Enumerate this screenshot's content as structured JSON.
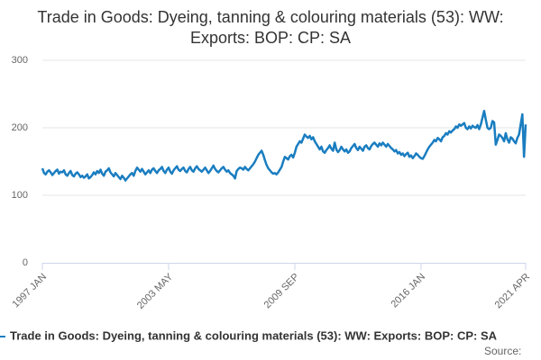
{
  "chart_data": {
    "type": "line",
    "title": "Trade in Goods: Dyeing, tanning & colouring materials (53): WW: Exports: BOP: CP: SA",
    "source": "Source:",
    "categories": [
      "1997 JAN",
      null,
      null,
      null,
      null,
      null,
      null,
      null,
      null,
      null,
      null,
      null,
      null,
      null,
      null,
      null,
      null,
      null,
      null,
      null,
      null,
      null,
      null,
      null,
      null,
      null,
      null,
      null,
      null,
      null,
      null,
      null,
      null,
      null,
      null,
      null,
      null,
      null,
      null,
      null,
      null,
      null,
      null,
      null,
      null,
      null,
      null,
      null,
      null,
      null,
      null,
      null,
      null,
      null,
      null,
      null,
      null,
      null,
      null,
      null,
      null,
      null,
      null,
      null,
      null,
      null,
      null,
      null,
      null,
      null,
      null,
      null,
      null,
      null,
      null,
      null,
      "2003 MAY",
      null,
      null,
      null,
      null,
      null,
      null,
      null,
      null,
      null,
      null,
      null,
      null,
      null,
      null,
      null,
      null,
      null,
      null,
      null,
      null,
      null,
      null,
      null,
      null,
      null,
      null,
      null,
      null,
      null,
      null,
      null,
      null,
      null,
      null,
      null,
      null,
      null,
      null,
      null,
      null,
      null,
      null,
      null,
      null,
      null,
      null,
      null,
      null,
      null,
      null,
      null,
      null,
      null,
      null,
      null,
      null,
      null,
      null,
      null,
      null,
      null,
      null,
      null,
      null,
      null,
      null,
      null,
      null,
      null,
      null,
      null,
      null,
      null,
      null,
      null,
      "2009 SEP",
      null,
      null,
      null,
      null,
      null,
      null,
      null,
      null,
      null,
      null,
      null,
      null,
      null,
      null,
      null,
      null,
      null,
      null,
      null,
      null,
      null,
      null,
      null,
      null,
      null,
      null,
      null,
      null,
      null,
      null,
      null,
      null,
      null,
      null,
      null,
      null,
      null,
      null,
      null,
      null,
      null,
      null,
      null,
      null,
      null,
      null,
      null,
      null,
      null,
      null,
      null,
      null,
      null,
      null,
      null,
      null,
      null,
      null,
      null,
      null,
      null,
      null,
      null,
      null,
      null,
      null,
      null,
      null,
      null,
      null,
      null,
      null,
      null,
      null,
      null,
      "2016 JAN",
      null,
      null,
      null,
      null,
      null,
      null,
      null,
      null,
      null,
      null,
      null,
      null,
      null,
      null,
      null,
      null,
      null,
      null,
      null,
      null,
      null,
      null,
      null,
      null,
      null,
      null,
      null,
      null,
      null,
      null,
      null,
      null,
      null,
      null,
      null,
      null,
      null,
      null,
      null,
      null,
      null,
      null,
      null,
      null,
      null,
      null,
      null,
      null,
      null,
      null,
      null,
      null,
      null,
      null,
      null,
      null,
      null,
      null,
      null,
      null,
      null,
      null,
      "2021 APR"
    ],
    "series": [
      {
        "name": "Trade in Goods: Dyeing, tanning & colouring materials (53): WW: Exports: BOP: CP: SA",
        "color": "#1a7dc0",
        "values": [
          140,
          133,
          131,
          135,
          137,
          134,
          130,
          133,
          136,
          138,
          132,
          135,
          134,
          137,
          131,
          129,
          133,
          136,
          130,
          128,
          132,
          134,
          131,
          127,
          129,
          126,
          128,
          131,
          125,
          127,
          130,
          134,
          131,
          136,
          133,
          138,
          132,
          129,
          135,
          137,
          140,
          134,
          131,
          128,
          133,
          130,
          127,
          124,
          129,
          126,
          122,
          125,
          128,
          131,
          133,
          129,
          136,
          141,
          138,
          135,
          139,
          135,
          131,
          134,
          137,
          133,
          138,
          140,
          136,
          133,
          137,
          139,
          142,
          136,
          133,
          138,
          141,
          135,
          132,
          137,
          140,
          143,
          138,
          136,
          139,
          141,
          136,
          134,
          139,
          142,
          137,
          135,
          140,
          143,
          139,
          137,
          135,
          138,
          141,
          137,
          133,
          136,
          140,
          144,
          139,
          136,
          134,
          137,
          140,
          142,
          138,
          135,
          137,
          133,
          131,
          129,
          125,
          136,
          139,
          141,
          140,
          138,
          142,
          139,
          137,
          140,
          143,
          146,
          150,
          155,
          160,
          163,
          166,
          160,
          152,
          145,
          140,
          137,
          134,
          132,
          133,
          131,
          134,
          138,
          142,
          150,
          157,
          155,
          153,
          158,
          160,
          156,
          163,
          172,
          176,
          180,
          178,
          184,
          190,
          187,
          185,
          188,
          183,
          186,
          180,
          176,
          172,
          168,
          172,
          165,
          163,
          167,
          170,
          174,
          169,
          166,
          178,
          168,
          164,
          167,
          172,
          168,
          165,
          168,
          163,
          165,
          170,
          173,
          176,
          170,
          167,
          172,
          169,
          166,
          172,
          174,
          170,
          168,
          173,
          176,
          178,
          175,
          172,
          177,
          174,
          178,
          175,
          172,
          176,
          173,
          170,
          168,
          165,
          167,
          162,
          164,
          160,
          162,
          158,
          161,
          163,
          157,
          159,
          155,
          158,
          162,
          160,
          157,
          155,
          154,
          158,
          163,
          168,
          172,
          175,
          178,
          182,
          180,
          185,
          183,
          180,
          186,
          188,
          192,
          190,
          195,
          193,
          196,
          198,
          202,
          200,
          205,
          203,
          205,
          207,
          200,
          198,
          202,
          199,
          203,
          201,
          200,
          204,
          198,
          205,
          215,
          225,
          212,
          200,
          198,
          200,
          210,
          208,
          175,
          182,
          190,
          188,
          185,
          180,
          192,
          183,
          178,
          186,
          184,
          180,
          177,
          185,
          190,
          205,
          220,
          157,
          205
        ]
      }
    ],
    "ylim": [
      0,
      300
    ],
    "yticks": [
      0,
      100,
      200,
      300
    ],
    "grid": true
  }
}
